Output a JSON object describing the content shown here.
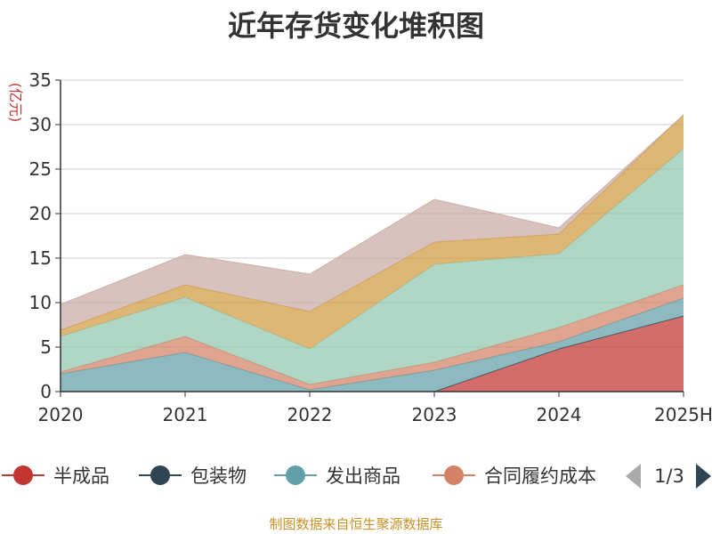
{
  "chart_data": {
    "type": "area",
    "stacked": true,
    "title": "近年存货变化堆积图",
    "ylabel": "(亿元)",
    "ylim": [
      0,
      35
    ],
    "yticks": [
      0,
      5,
      10,
      15,
      20,
      25,
      30,
      35
    ],
    "grid": true,
    "categories": [
      "2020",
      "2021",
      "2022",
      "2023",
      "2024",
      "2025H"
    ],
    "series": [
      {
        "name": "半成品",
        "color": "#c23531",
        "values": [
          0,
          0,
          0,
          0,
          4.8,
          8.5
        ]
      },
      {
        "name": "包装物",
        "color": "#2f4554",
        "values": [
          0,
          0,
          0,
          0,
          0,
          0
        ]
      },
      {
        "name": "发出商品",
        "color": "#61a0a8",
        "values": [
          2.0,
          4.4,
          0.2,
          2.4,
          0.8,
          2.0
        ]
      },
      {
        "name": "合同履约成本",
        "color": "#d48265",
        "values": [
          0.2,
          1.8,
          0.6,
          0.9,
          1.6,
          1.5
        ]
      },
      {
        "color": "#91c7ae",
        "values": [
          4.0,
          4.4,
          4.0,
          11.0,
          8.3,
          15.3
        ]
      },
      {
        "color": "#d29b3e",
        "values": [
          0.7,
          1.4,
          4.2,
          2.5,
          2.2,
          3.8
        ]
      },
      {
        "color": "#c9aba5",
        "values": [
          2.9,
          3.4,
          4.2,
          4.8,
          0.7,
          0
        ]
      }
    ]
  },
  "legend": {
    "items": [
      {
        "label": "半成品",
        "color": "#c23531"
      },
      {
        "label": "包装物",
        "color": "#2f4554"
      },
      {
        "label": "发出商品",
        "color": "#61a0a8"
      },
      {
        "label": "合同履约成本",
        "color": "#d48265"
      }
    ],
    "page_indicator": "1/3"
  },
  "footer": "制图数据来自恒生聚源数据库"
}
